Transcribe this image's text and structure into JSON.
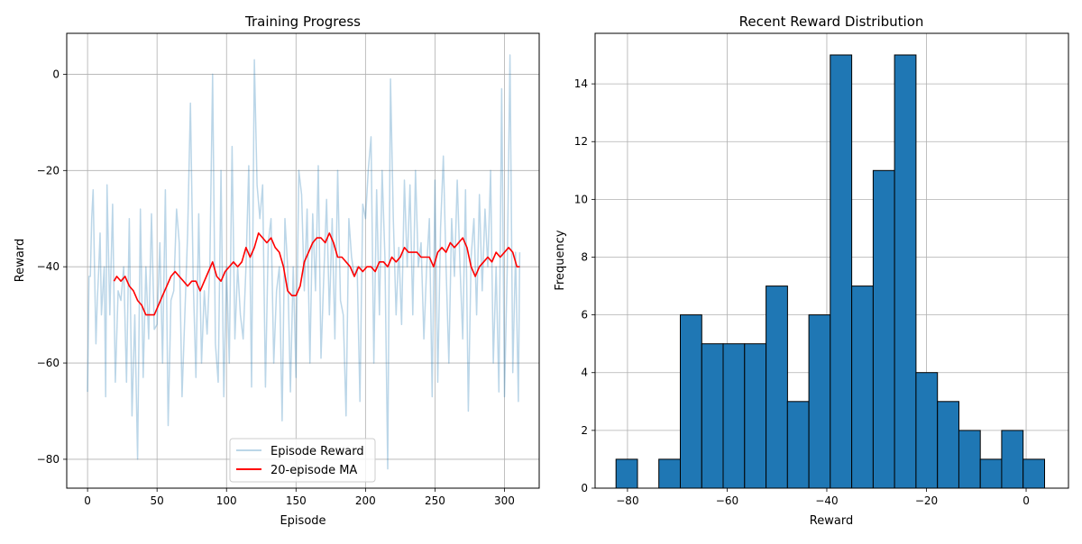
{
  "figure": {
    "left_chart": {
      "title": "Training Progress",
      "xlabel": "Episode",
      "ylabel": "Reward",
      "legend": {
        "placement": "lower-center",
        "items": [
          {
            "label": "Episode Reward",
            "color": "#1f77b4",
            "opacity": 0.3
          },
          {
            "label": "20-episode MA",
            "color": "#ff0000"
          }
        ]
      }
    },
    "right_chart": {
      "title": "Recent Reward Distribution",
      "xlabel": "Reward",
      "ylabel": "Frequency"
    }
  },
  "chart_data": [
    {
      "type": "line",
      "title": "Training Progress",
      "xlabel": "Episode",
      "ylabel": "Reward",
      "xlim": [
        -15,
        325
      ],
      "ylim": [
        -86,
        8.5
      ],
      "xticks": [
        0,
        50,
        100,
        150,
        200,
        250,
        300
      ],
      "yticks": [
        -80,
        -60,
        -40,
        -20,
        0
      ],
      "grid": true,
      "legend_placement": "lower-center",
      "series": [
        {
          "name": "Episode Reward",
          "color": "#1f77b4",
          "opacity": 0.3,
          "anchors": [
            [
              0,
              -66
            ],
            [
              1,
              -42
            ],
            [
              2,
              -42
            ],
            [
              3,
              -30
            ],
            [
              4,
              -24
            ],
            [
              5,
              -40
            ],
            [
              6,
              -56
            ],
            [
              7,
              -47
            ],
            [
              8,
              -41
            ],
            [
              9,
              -33
            ],
            [
              10,
              -50
            ],
            [
              12,
              -40
            ],
            [
              13,
              -67
            ],
            [
              14,
              -23
            ],
            [
              16,
              -50
            ],
            [
              18,
              -27
            ],
            [
              20,
              -64
            ],
            [
              22,
              -45
            ],
            [
              24,
              -47
            ],
            [
              26,
              -40
            ],
            [
              28,
              -64
            ],
            [
              30,
              -30
            ],
            [
              32,
              -71
            ],
            [
              34,
              -50
            ],
            [
              36,
              -80
            ],
            [
              38,
              -28
            ],
            [
              40,
              -63
            ],
            [
              42,
              -40
            ],
            [
              44,
              -55
            ],
            [
              46,
              -29
            ],
            [
              48,
              -53
            ],
            [
              50,
              -52
            ],
            [
              52,
              -35
            ],
            [
              54,
              -60
            ],
            [
              56,
              -24
            ],
            [
              58,
              -73
            ],
            [
              60,
              -47
            ],
            [
              62,
              -45
            ],
            [
              64,
              -28
            ],
            [
              66,
              -35
            ],
            [
              68,
              -67
            ],
            [
              70,
              -50
            ],
            [
              72,
              -33
            ],
            [
              74,
              -6
            ],
            [
              76,
              -42
            ],
            [
              78,
              -63
            ],
            [
              80,
              -29
            ],
            [
              82,
              -60
            ],
            [
              84,
              -45
            ],
            [
              86,
              -54
            ],
            [
              88,
              -40
            ],
            [
              90,
              0
            ],
            [
              92,
              -56
            ],
            [
              94,
              -64
            ],
            [
              96,
              -20
            ],
            [
              98,
              -67
            ],
            [
              100,
              -40
            ],
            [
              102,
              -60
            ],
            [
              104,
              -15
            ],
            [
              106,
              -55
            ],
            [
              108,
              -40
            ],
            [
              110,
              -50
            ],
            [
              112,
              -55
            ],
            [
              114,
              -40
            ],
            [
              116,
              -19
            ],
            [
              118,
              -65
            ],
            [
              120,
              3
            ],
            [
              122,
              -23
            ],
            [
              124,
              -30
            ],
            [
              126,
              -23
            ],
            [
              128,
              -65
            ],
            [
              130,
              -35
            ],
            [
              132,
              -30
            ],
            [
              134,
              -60
            ],
            [
              136,
              -45
            ],
            [
              138,
              -40
            ],
            [
              140,
              -72
            ],
            [
              142,
              -30
            ],
            [
              144,
              -40
            ],
            [
              146,
              -66
            ],
            [
              148,
              -40
            ],
            [
              150,
              -63
            ],
            [
              152,
              -20
            ],
            [
              154,
              -25
            ],
            [
              156,
              -45
            ],
            [
              158,
              -28
            ],
            [
              160,
              -60
            ],
            [
              162,
              -29
            ],
            [
              164,
              -45
            ],
            [
              166,
              -19
            ],
            [
              168,
              -59
            ],
            [
              170,
              -42
            ],
            [
              172,
              -26
            ],
            [
              174,
              -50
            ],
            [
              176,
              -30
            ],
            [
              178,
              -55
            ],
            [
              180,
              -20
            ],
            [
              182,
              -47
            ],
            [
              184,
              -50
            ],
            [
              186,
              -71
            ],
            [
              188,
              -30
            ],
            [
              190,
              -38
            ],
            [
              192,
              -42
            ],
            [
              194,
              -40
            ],
            [
              196,
              -68
            ],
            [
              198,
              -27
            ],
            [
              200,
              -30
            ],
            [
              202,
              -20
            ],
            [
              204,
              -13
            ],
            [
              206,
              -60
            ],
            [
              208,
              -24
            ],
            [
              210,
              -50
            ],
            [
              212,
              -20
            ],
            [
              214,
              -38
            ],
            [
              216,
              -82
            ],
            [
              218,
              -1
            ],
            [
              220,
              -30
            ],
            [
              222,
              -50
            ],
            [
              224,
              -36
            ],
            [
              226,
              -52
            ],
            [
              228,
              -22
            ],
            [
              230,
              -40
            ],
            [
              232,
              -23
            ],
            [
              234,
              -50
            ],
            [
              236,
              -20
            ],
            [
              238,
              -40
            ],
            [
              240,
              -35
            ],
            [
              242,
              -55
            ],
            [
              244,
              -40
            ],
            [
              246,
              -30
            ],
            [
              248,
              -67
            ],
            [
              250,
              -22
            ],
            [
              252,
              -64
            ],
            [
              254,
              -32
            ],
            [
              256,
              -17
            ],
            [
              258,
              -40
            ],
            [
              260,
              -60
            ],
            [
              262,
              -30
            ],
            [
              264,
              -42
            ],
            [
              266,
              -22
            ],
            [
              268,
              -40
            ],
            [
              270,
              -55
            ],
            [
              272,
              -24
            ],
            [
              274,
              -70
            ],
            [
              276,
              -38
            ],
            [
              278,
              -30
            ],
            [
              280,
              -50
            ],
            [
              282,
              -25
            ],
            [
              284,
              -45
            ],
            [
              286,
              -28
            ],
            [
              288,
              -40
            ],
            [
              290,
              -20
            ],
            [
              292,
              -60
            ],
            [
              294,
              -40
            ],
            [
              296,
              -66
            ],
            [
              298,
              -3
            ],
            [
              300,
              -67
            ],
            [
              302,
              -40
            ],
            [
              304,
              4
            ],
            [
              306,
              -62
            ],
            [
              308,
              -37
            ],
            [
              310,
              -68
            ],
            [
              311,
              -37
            ]
          ]
        },
        {
          "name": "20-episode MA",
          "color": "#ff0000",
          "anchors": [
            [
              19,
              -43
            ],
            [
              21,
              -42
            ],
            [
              24,
              -43
            ],
            [
              27,
              -42
            ],
            [
              30,
              -44
            ],
            [
              33,
              -45
            ],
            [
              36,
              -47
            ],
            [
              39,
              -48
            ],
            [
              42,
              -50
            ],
            [
              45,
              -50
            ],
            [
              48,
              -50
            ],
            [
              51,
              -48
            ],
            [
              54,
              -46
            ],
            [
              57,
              -44
            ],
            [
              60,
              -42
            ],
            [
              63,
              -41
            ],
            [
              66,
              -42
            ],
            [
              69,
              -43
            ],
            [
              72,
              -44
            ],
            [
              75,
              -43
            ],
            [
              78,
              -43
            ],
            [
              81,
              -45
            ],
            [
              84,
              -43
            ],
            [
              87,
              -41
            ],
            [
              90,
              -39
            ],
            [
              93,
              -42
            ],
            [
              96,
              -43
            ],
            [
              99,
              -41
            ],
            [
              102,
              -40
            ],
            [
              105,
              -39
            ],
            [
              108,
              -40
            ],
            [
              111,
              -39
            ],
            [
              114,
              -36
            ],
            [
              117,
              -38
            ],
            [
              120,
              -36
            ],
            [
              123,
              -33
            ],
            [
              126,
              -34
            ],
            [
              129,
              -35
            ],
            [
              132,
              -34
            ],
            [
              135,
              -36
            ],
            [
              138,
              -37
            ],
            [
              141,
              -40
            ],
            [
              144,
              -45
            ],
            [
              147,
              -46
            ],
            [
              150,
              -46
            ],
            [
              153,
              -44
            ],
            [
              156,
              -39
            ],
            [
              159,
              -37
            ],
            [
              162,
              -35
            ],
            [
              165,
              -34
            ],
            [
              168,
              -34
            ],
            [
              171,
              -35
            ],
            [
              174,
              -33
            ],
            [
              177,
              -35
            ],
            [
              180,
              -38
            ],
            [
              183,
              -38
            ],
            [
              186,
              -39
            ],
            [
              189,
              -40
            ],
            [
              192,
              -42
            ],
            [
              195,
              -40
            ],
            [
              198,
              -41
            ],
            [
              201,
              -40
            ],
            [
              204,
              -40
            ],
            [
              207,
              -41
            ],
            [
              210,
              -39
            ],
            [
              213,
              -39
            ],
            [
              216,
              -40
            ],
            [
              219,
              -38
            ],
            [
              222,
              -39
            ],
            [
              225,
              -38
            ],
            [
              228,
              -36
            ],
            [
              231,
              -37
            ],
            [
              234,
              -37
            ],
            [
              237,
              -37
            ],
            [
              240,
              -38
            ],
            [
              243,
              -38
            ],
            [
              246,
              -38
            ],
            [
              249,
              -40
            ],
            [
              252,
              -37
            ],
            [
              255,
              -36
            ],
            [
              258,
              -37
            ],
            [
              261,
              -35
            ],
            [
              264,
              -36
            ],
            [
              267,
              -35
            ],
            [
              270,
              -34
            ],
            [
              273,
              -36
            ],
            [
              276,
              -40
            ],
            [
              279,
              -42
            ],
            [
              282,
              -40
            ],
            [
              285,
              -39
            ],
            [
              288,
              -38
            ],
            [
              291,
              -39
            ],
            [
              294,
              -37
            ],
            [
              297,
              -38
            ],
            [
              300,
              -37
            ],
            [
              303,
              -36
            ],
            [
              306,
              -37
            ],
            [
              309,
              -40
            ],
            [
              311,
              -40
            ]
          ]
        }
      ]
    },
    {
      "type": "bar",
      "title": "Recent Reward Distribution",
      "xlabel": "Reward",
      "ylabel": "Frequency",
      "xlim": [
        -86.5,
        8.5
      ],
      "ylim": [
        0,
        15.75
      ],
      "xticks": [
        -80,
        -60,
        -40,
        -20,
        0
      ],
      "yticks": [
        0,
        2,
        4,
        6,
        8,
        10,
        12,
        14
      ],
      "grid": true,
      "bar_color": "#1f77b4",
      "edge_color": "#000000",
      "bin_edges": [
        -82.3,
        -78.0,
        -73.7,
        -69.4,
        -65.1,
        -60.8,
        -56.5,
        -52.2,
        -47.9,
        -43.6,
        -39.3,
        -35.0,
        -30.7,
        -26.4,
        -22.1,
        -17.8,
        -13.5,
        -9.2,
        -4.9,
        -0.6,
        3.7
      ],
      "values": [
        1,
        0,
        1,
        6,
        5,
        5,
        5,
        7,
        3,
        6,
        15,
        7,
        11,
        15,
        4,
        3,
        2,
        1,
        2,
        1
      ]
    }
  ]
}
